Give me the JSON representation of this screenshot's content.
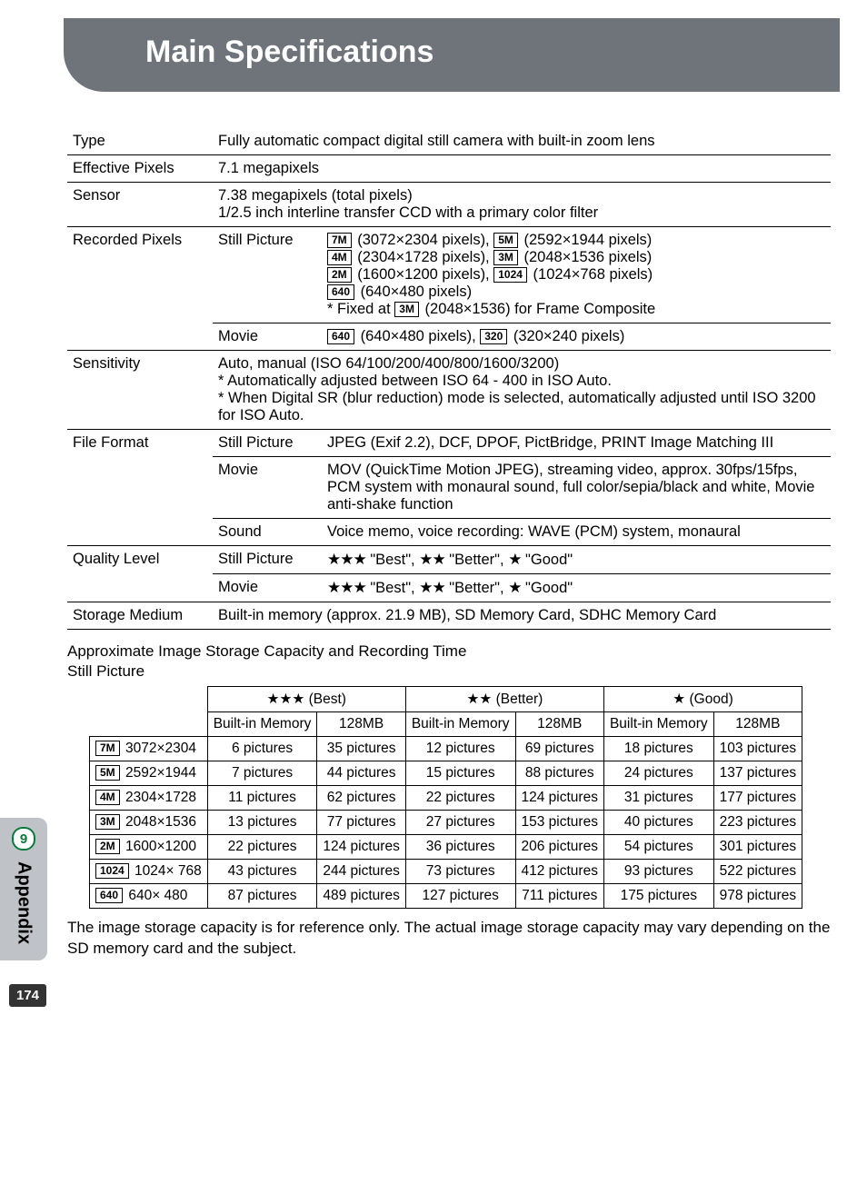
{
  "header": {
    "title": "Main Specifications"
  },
  "side": {
    "badge": "9",
    "label": "Appendix"
  },
  "page_number": "174",
  "specs": {
    "type": {
      "label": "Type",
      "value": "Fully automatic compact digital still camera with built-in zoom lens"
    },
    "effective_pixels": {
      "label": "Effective Pixels",
      "value": "7.1 megapixels"
    },
    "sensor": {
      "label": "Sensor",
      "line1": "7.38 megapixels (total pixels)",
      "line2": "1/2.5 inch interline transfer CCD with a primary color filter"
    },
    "recorded_pixels": {
      "label": "Recorded Pixels",
      "still_label": "Still Picture",
      "movie_label": "Movie",
      "still": {
        "r7m": "7M",
        "r7m_v": " (3072×2304 pixels), ",
        "r5m": "5M",
        "r5m_v": " (2592×1944 pixels)",
        "r4m": "4M",
        "r4m_v": " (2304×1728 pixels), ",
        "r3m": "3M",
        "r3m_v": " (2048×1536 pixels)",
        "r2m": "2M",
        "r2m_v": " (1600×1200 pixels), ",
        "r1024": "1024",
        "r1024_v": " (1024×768 pixels)",
        "r640": "640",
        "r640_v": " (640×480 pixels)",
        "note_a": "* Fixed at ",
        "note_badge": "3M",
        "note_b": " (2048×1536) for Frame Composite"
      },
      "movie": {
        "r640": "640",
        "r640_v": " (640×480 pixels), ",
        "r320": "320",
        "r320_v": " (320×240 pixels)"
      }
    },
    "sensitivity": {
      "label": "Sensitivity",
      "line1": "Auto, manual (ISO 64/100/200/400/800/1600/3200)",
      "line2": "* Automatically adjusted between ISO 64 - 400 in ISO Auto.",
      "line3": "* When Digital SR (blur reduction) mode is selected, automatically adjusted until ISO 3200 for ISO Auto."
    },
    "file_format": {
      "label": "File Format",
      "still_label": "Still Picture",
      "still_value": "JPEG (Exif 2.2), DCF, DPOF, PictBridge, PRINT Image Matching III",
      "movie_label": "Movie",
      "movie_value": "MOV (QuickTime Motion JPEG), streaming video, approx. 30fps/15fps, PCM system with monaural sound, full color/sepia/black and white, Movie anti-shake function",
      "sound_label": "Sound",
      "sound_value": "Voice memo, voice recording: WAVE (PCM) system, monaural"
    },
    "quality_level": {
      "label": "Quality Level",
      "still_label": "Still Picture",
      "movie_label": "Movie",
      "stars3": "★★★",
      "stars2": "★★",
      "stars1": "★",
      "best": " \"Best\", ",
      "better": " \"Better\", ",
      "good": " \"Good\""
    },
    "storage": {
      "label": "Storage Medium",
      "value": "Built-in memory (approx. 21.9 MB), SD Memory Card, SDHC Memory Card"
    }
  },
  "capacity": {
    "heading1": "Approximate Image Storage Capacity and Recording Time",
    "heading2": "Still Picture",
    "cols": {
      "best": "★★★ (Best)",
      "better": "★★ (Better)",
      "good": "★ (Good)",
      "builtin": "Built-in Memory",
      "sd": "128MB"
    },
    "rows": [
      {
        "badge": "7M",
        "res": "3072×2304",
        "v": [
          "6 pictures",
          "35 pictures",
          "12 pictures",
          "69 pictures",
          "18 pictures",
          "103 pictures"
        ]
      },
      {
        "badge": "5M",
        "res": "2592×1944",
        "v": [
          "7 pictures",
          "44 pictures",
          "15 pictures",
          "88 pictures",
          "24 pictures",
          "137 pictures"
        ]
      },
      {
        "badge": "4M",
        "res": "2304×1728",
        "v": [
          "11 pictures",
          "62 pictures",
          "22 pictures",
          "124 pictures",
          "31 pictures",
          "177 pictures"
        ]
      },
      {
        "badge": "3M",
        "res": "2048×1536",
        "v": [
          "13 pictures",
          "77 pictures",
          "27 pictures",
          "153 pictures",
          "40 pictures",
          "223 pictures"
        ]
      },
      {
        "badge": "2M",
        "res": "1600×1200",
        "v": [
          "22 pictures",
          "124 pictures",
          "36 pictures",
          "206 pictures",
          "54 pictures",
          "301 pictures"
        ]
      },
      {
        "badge": "1024",
        "res": "1024× 768",
        "v": [
          "43 pictures",
          "244 pictures",
          "73 pictures",
          "412 pictures",
          "93 pictures",
          "522 pictures"
        ]
      },
      {
        "badge": "640",
        "res": "640× 480",
        "v": [
          "87 pictures",
          "489 pictures",
          "127 pictures",
          "711 pictures",
          "175 pictures",
          "978 pictures"
        ]
      }
    ],
    "footnote": "The image storage capacity is for reference only. The actual image storage capacity may vary depending on the SD memory card and the subject."
  }
}
